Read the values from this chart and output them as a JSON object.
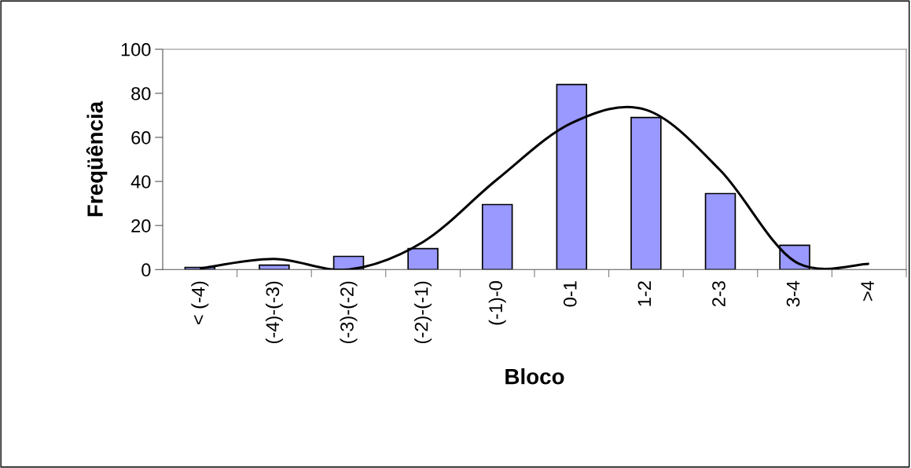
{
  "chart_data": {
    "type": "bar",
    "xlabel": "Bloco",
    "ylabel": "Freqüência",
    "categories": [
      "< (-4)",
      "(-4)-(-3)",
      "(-3)-(-2)",
      "(-2)-(-1)",
      "(-1)-0",
      "0-1",
      "1-2",
      "2-3",
      "3-4",
      ">4"
    ],
    "series": [
      {
        "color": "#9999ff",
        "values": [
          1,
          2,
          6,
          9.5,
          29.5,
          84,
          69,
          34.5,
          11,
          0
        ]
      },
      {
        "type": "line",
        "color": "#000000",
        "values": [
          0.5,
          4.8,
          0,
          12.5,
          41,
          66.5,
          72.5,
          45,
          3.7,
          2.6
        ]
      }
    ],
    "ylim": [
      0,
      100
    ],
    "yticks": [
      0,
      20,
      40,
      60,
      80,
      100
    ],
    "grid": false,
    "legend": false,
    "marker": "none",
    "line_style": "solid"
  }
}
